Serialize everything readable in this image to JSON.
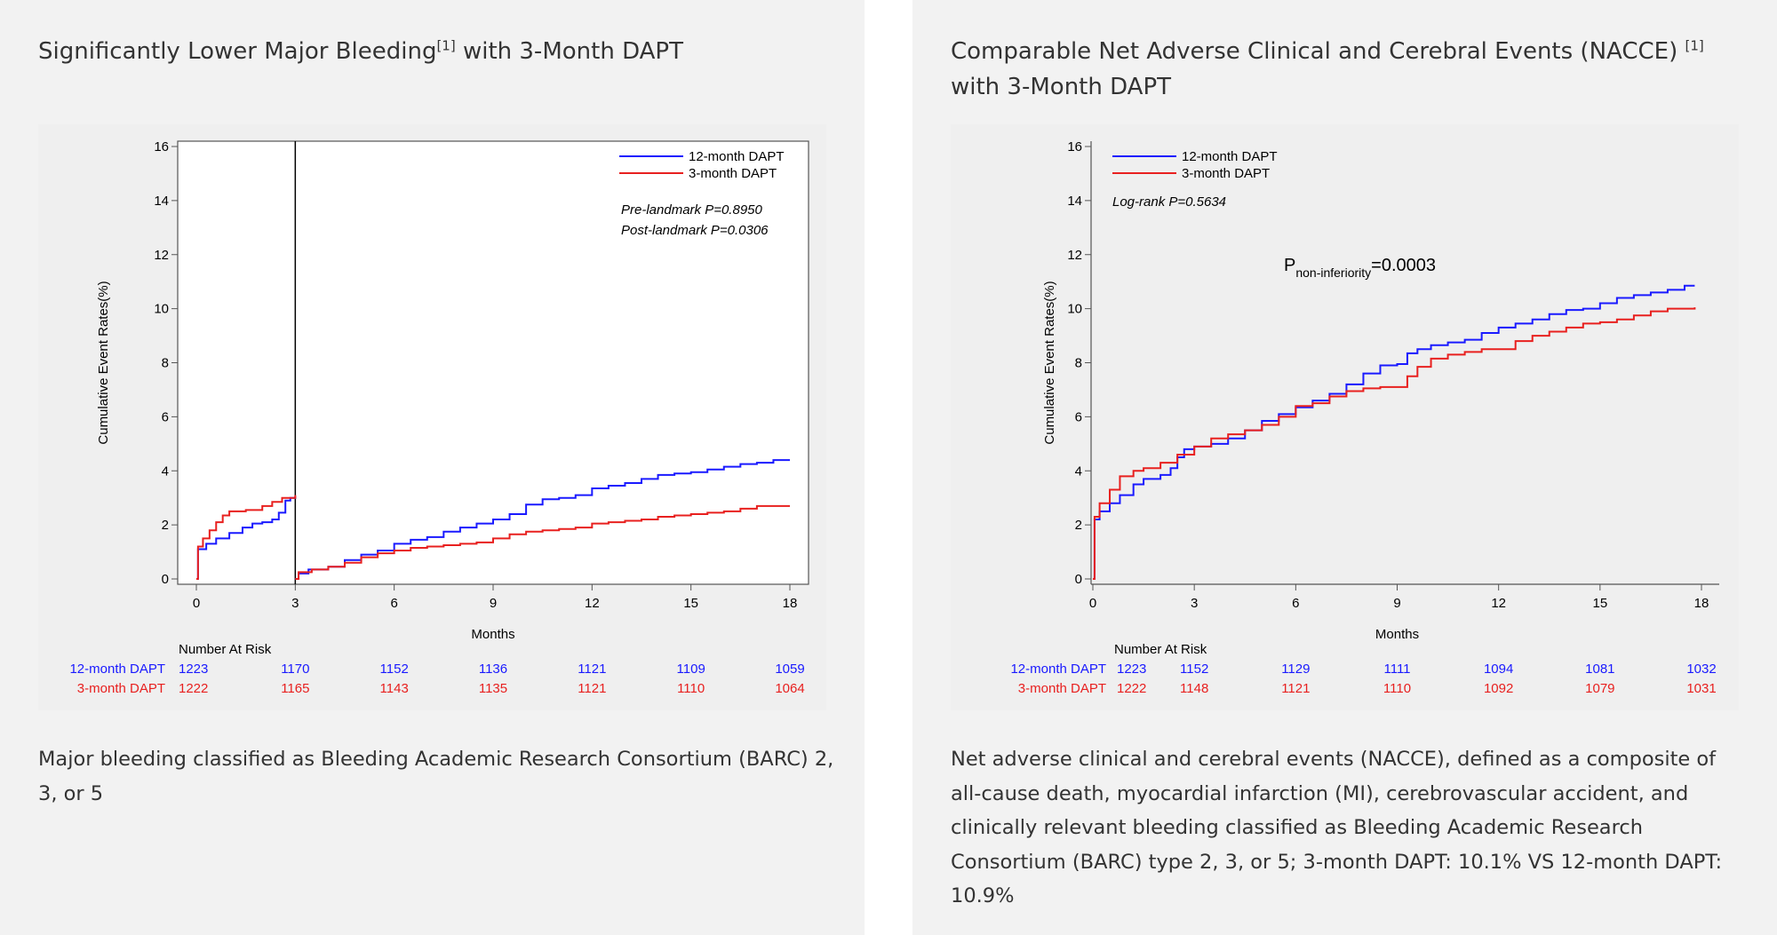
{
  "panels": [
    {
      "title_main": "Significantly Lower Major Bleeding",
      "title_ref": "[1]",
      "title_tail": " with 3-Month DAPT",
      "caption": "Major bleeding classified as Bleeding Academic Research Consortium (BARC) 2, 3, or 5"
    },
    {
      "title_main": "Comparable Net Adverse Clinical and Cerebral Events (NACCE) ",
      "title_ref": "[1]",
      "title_tail": " with 3-Month DAPT",
      "caption": "Net adverse clinical and cerebral events (NACCE), defined as a composite of all-cause death, myocardial infarction (MI), cerebrovascular accident, and clinically relevant bleeding classified as Bleeding Academic Research Consortium (BARC) type 2, 3, or 5; 3-month DAPT: 10.1% VS 12-month DAPT: 10.9%"
    }
  ],
  "chart_data": [
    {
      "type": "line",
      "subtype": "kaplan-meier-landmark",
      "title": "Significantly Lower Major Bleeding with 3-Month DAPT",
      "xlabel": "Months",
      "ylabel": "Cumulative Event Rates(%)",
      "xlim": [
        0,
        18
      ],
      "ylim": [
        0,
        16
      ],
      "xticks": [
        0,
        3,
        6,
        9,
        12,
        15,
        18
      ],
      "yticks": [
        0,
        2,
        4,
        6,
        8,
        10,
        12,
        14,
        16
      ],
      "landmark_x": 3,
      "legend_position": "top-right",
      "annotations": [
        "Pre-landmark P=0.8950",
        "Post-landmark P=0.0306"
      ],
      "series": [
        {
          "name": "12-month DAPT",
          "color": "#1a1aff",
          "segments": [
            [
              [
                0,
                0
              ],
              [
                0.05,
                1.1
              ],
              [
                0.3,
                1.3
              ],
              [
                0.6,
                1.5
              ],
              [
                1.0,
                1.7
              ],
              [
                1.4,
                1.9
              ],
              [
                1.7,
                2.05
              ],
              [
                2.0,
                2.1
              ],
              [
                2.3,
                2.2
              ],
              [
                2.5,
                2.45
              ],
              [
                2.7,
                2.9
              ],
              [
                2.85,
                3.0
              ],
              [
                3.0,
                3.05
              ]
            ],
            [
              [
                3.0,
                0
              ],
              [
                3.1,
                0.2
              ],
              [
                3.4,
                0.35
              ],
              [
                4.0,
                0.45
              ],
              [
                4.5,
                0.7
              ],
              [
                5.0,
                0.9
              ],
              [
                5.5,
                1.05
              ],
              [
                6.0,
                1.3
              ],
              [
                6.5,
                1.45
              ],
              [
                7.0,
                1.55
              ],
              [
                7.5,
                1.75
              ],
              [
                8.0,
                1.9
              ],
              [
                8.5,
                2.05
              ],
              [
                9.0,
                2.2
              ],
              [
                9.5,
                2.4
              ],
              [
                10.0,
                2.75
              ],
              [
                10.5,
                2.95
              ],
              [
                11.0,
                3.0
              ],
              [
                11.5,
                3.1
              ],
              [
                12.0,
                3.35
              ],
              [
                12.5,
                3.45
              ],
              [
                13.0,
                3.55
              ],
              [
                13.5,
                3.7
              ],
              [
                14.0,
                3.85
              ],
              [
                14.5,
                3.9
              ],
              [
                15.0,
                3.95
              ],
              [
                15.5,
                4.05
              ],
              [
                16.0,
                4.15
              ],
              [
                16.5,
                4.25
              ],
              [
                17.0,
                4.3
              ],
              [
                17.5,
                4.4
              ],
              [
                18.0,
                4.4
              ]
            ]
          ]
        },
        {
          "name": "3-month DAPT",
          "color": "#e8201f",
          "segments": [
            [
              [
                0,
                0
              ],
              [
                0.05,
                1.2
              ],
              [
                0.2,
                1.5
              ],
              [
                0.4,
                1.8
              ],
              [
                0.6,
                2.1
              ],
              [
                0.8,
                2.35
              ],
              [
                1.0,
                2.5
              ],
              [
                1.5,
                2.55
              ],
              [
                2.0,
                2.7
              ],
              [
                2.3,
                2.85
              ],
              [
                2.6,
                3.0
              ],
              [
                3.0,
                3.1
              ]
            ],
            [
              [
                3.0,
                0
              ],
              [
                3.1,
                0.25
              ],
              [
                3.5,
                0.35
              ],
              [
                4.0,
                0.45
              ],
              [
                4.5,
                0.6
              ],
              [
                5.0,
                0.8
              ],
              [
                5.5,
                0.95
              ],
              [
                6.0,
                1.05
              ],
              [
                6.5,
                1.15
              ],
              [
                7.0,
                1.2
              ],
              [
                7.5,
                1.25
              ],
              [
                8.0,
                1.3
              ],
              [
                8.5,
                1.35
              ],
              [
                9.0,
                1.5
              ],
              [
                9.5,
                1.65
              ],
              [
                10.0,
                1.75
              ],
              [
                10.5,
                1.8
              ],
              [
                11.0,
                1.85
              ],
              [
                11.5,
                1.9
              ],
              [
                12.0,
                2.05
              ],
              [
                12.5,
                2.1
              ],
              [
                13.0,
                2.15
              ],
              [
                13.5,
                2.2
              ],
              [
                14.0,
                2.3
              ],
              [
                14.5,
                2.35
              ],
              [
                15.0,
                2.4
              ],
              [
                15.5,
                2.45
              ],
              [
                16.0,
                2.5
              ],
              [
                16.5,
                2.6
              ],
              [
                17.0,
                2.7
              ],
              [
                18.0,
                2.7
              ]
            ]
          ]
        }
      ],
      "risk_table": {
        "header": "Number At Risk",
        "times": [
          0,
          3,
          6,
          9,
          12,
          15,
          18
        ],
        "rows": [
          {
            "name": "12-month DAPT",
            "color": "#1a1aff",
            "values": [
              "1223",
              "1170",
              "1152",
              "1136",
              "1121",
              "1109",
              "1059"
            ]
          },
          {
            "name": "3-month DAPT",
            "color": "#e8201f",
            "values": [
              "1222",
              "1165",
              "1143",
              "1135",
              "1121",
              "1110",
              "1064"
            ]
          }
        ]
      }
    },
    {
      "type": "line",
      "subtype": "kaplan-meier",
      "title": "Comparable Net Adverse Clinical and Cerebral Events (NACCE) with 3-Month DAPT",
      "xlabel": "Months",
      "ylabel": "Cumulative Event Rates(%)",
      "xlim": [
        0,
        18
      ],
      "ylim": [
        0,
        16
      ],
      "xticks": [
        0,
        3,
        6,
        9,
        12,
        15,
        18
      ],
      "yticks": [
        0,
        2,
        4,
        6,
        8,
        10,
        12,
        14,
        16
      ],
      "legend_position": "top-left",
      "annotations": [
        "Log-rank P=0.5634"
      ],
      "p_label_main": "P",
      "p_label_sub": "non-inferiority",
      "p_label_value": "=0.0003",
      "series": [
        {
          "name": "12-month DAPT",
          "color": "#1a1aff",
          "segments": [
            [
              [
                0,
                0
              ],
              [
                0.05,
                2.2
              ],
              [
                0.2,
                2.5
              ],
              [
                0.5,
                2.8
              ],
              [
                0.8,
                3.1
              ],
              [
                1.2,
                3.5
              ],
              [
                1.5,
                3.7
              ],
              [
                2.0,
                3.85
              ],
              [
                2.3,
                4.1
              ],
              [
                2.5,
                4.5
              ],
              [
                2.7,
                4.8
              ],
              [
                3.0,
                4.9
              ],
              [
                3.5,
                5.0
              ],
              [
                4.0,
                5.2
              ],
              [
                4.5,
                5.5
              ],
              [
                5.0,
                5.85
              ],
              [
                5.5,
                6.1
              ],
              [
                6.0,
                6.35
              ],
              [
                6.5,
                6.6
              ],
              [
                7.0,
                6.85
              ],
              [
                7.5,
                7.2
              ],
              [
                8.0,
                7.6
              ],
              [
                8.5,
                7.9
              ],
              [
                9.0,
                7.95
              ],
              [
                9.3,
                8.35
              ],
              [
                9.6,
                8.5
              ],
              [
                10.0,
                8.65
              ],
              [
                10.5,
                8.75
              ],
              [
                11.0,
                8.85
              ],
              [
                11.5,
                9.1
              ],
              [
                12.0,
                9.3
              ],
              [
                12.5,
                9.45
              ],
              [
                13.0,
                9.6
              ],
              [
                13.5,
                9.8
              ],
              [
                14.0,
                9.95
              ],
              [
                14.5,
                10.0
              ],
              [
                15.0,
                10.2
              ],
              [
                15.5,
                10.4
              ],
              [
                16.0,
                10.5
              ],
              [
                16.5,
                10.6
              ],
              [
                17.0,
                10.7
              ],
              [
                17.5,
                10.85
              ],
              [
                17.8,
                10.85
              ]
            ]
          ]
        },
        {
          "name": "3-month DAPT",
          "color": "#e8201f",
          "segments": [
            [
              [
                0,
                0
              ],
              [
                0.05,
                2.3
              ],
              [
                0.2,
                2.8
              ],
              [
                0.5,
                3.3
              ],
              [
                0.8,
                3.8
              ],
              [
                1.2,
                4.0
              ],
              [
                1.5,
                4.1
              ],
              [
                2.0,
                4.3
              ],
              [
                2.5,
                4.6
              ],
              [
                3.0,
                4.9
              ],
              [
                3.5,
                5.2
              ],
              [
                4.0,
                5.35
              ],
              [
                4.5,
                5.5
              ],
              [
                5.0,
                5.7
              ],
              [
                5.5,
                6.0
              ],
              [
                6.0,
                6.4
              ],
              [
                6.5,
                6.5
              ],
              [
                7.0,
                6.75
              ],
              [
                7.5,
                6.95
              ],
              [
                8.0,
                7.05
              ],
              [
                8.5,
                7.1
              ],
              [
                9.0,
                7.1
              ],
              [
                9.3,
                7.5
              ],
              [
                9.6,
                7.85
              ],
              [
                10.0,
                8.15
              ],
              [
                10.5,
                8.3
              ],
              [
                11.0,
                8.4
              ],
              [
                11.5,
                8.5
              ],
              [
                12.0,
                8.5
              ],
              [
                12.5,
                8.8
              ],
              [
                13.0,
                9.0
              ],
              [
                13.5,
                9.15
              ],
              [
                14.0,
                9.3
              ],
              [
                14.5,
                9.45
              ],
              [
                15.0,
                9.5
              ],
              [
                15.5,
                9.6
              ],
              [
                16.0,
                9.75
              ],
              [
                16.5,
                9.9
              ],
              [
                17.0,
                10.0
              ],
              [
                17.8,
                10.05
              ]
            ]
          ]
        }
      ],
      "risk_table": {
        "header": "Number At Risk",
        "times": [
          0,
          3,
          6,
          9,
          12,
          15,
          18
        ],
        "rows": [
          {
            "name": "12-month DAPT",
            "color": "#1a1aff",
            "values": [
              "1223",
              "1152",
              "1129",
              "1111",
              "1094",
              "1081",
              "1032"
            ]
          },
          {
            "name": "3-month DAPT",
            "color": "#e8201f",
            "values": [
              "1222",
              "1148",
              "1121",
              "1110",
              "1092",
              "1079",
              "1031"
            ]
          }
        ]
      }
    }
  ]
}
